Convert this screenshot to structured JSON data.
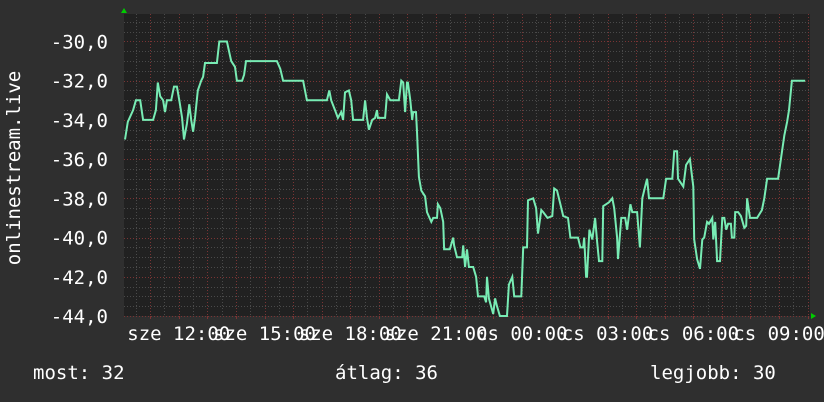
{
  "chart_data": {
    "type": "line",
    "ylabel": "onlinestream.live",
    "xlim": [
      "10:05",
      "10:05"
    ],
    "ylim": [
      -44,
      -28.6
    ],
    "yticks": [
      -30,
      -32,
      -34,
      -36,
      -38,
      -40,
      -42,
      -44
    ],
    "ytick_labels": [
      "-30,0",
      "-32,0",
      "-34,0",
      "-36,0",
      "-38,0",
      "-40,0",
      "-42,0",
      "-44,0"
    ],
    "xticks": [
      "12:00",
      "15:00",
      "18:00",
      "21:00",
      "00:00",
      "03:00",
      "06:00",
      "09:00"
    ],
    "xtick_labels": [
      "sze 12:00",
      "sze 15:00",
      "sze 18:00",
      "sze 21:00",
      "cs 00:00",
      "cs 03:00",
      "cs 06:00",
      "cs 09:00"
    ],
    "grid": true,
    "colors": {
      "line": "#78ecb4",
      "background": "#2f2f2f",
      "plot": "#212121",
      "major_grid": "#7a3434",
      "minor_grid": "#4a4a4a",
      "arrow": "#00cc00"
    },
    "series": [
      {
        "x": [
          "10:07",
          "10:13",
          "10:24",
          "10:30",
          "10:39",
          "10:45",
          "11:06",
          "11:12",
          "11:16",
          "11:21",
          "11:27",
          "11:31",
          "11:35",
          "11:44",
          "11:50",
          "11:56",
          "12:01",
          "12:07",
          "12:11",
          "12:17",
          "12:22",
          "12:26",
          "12:30",
          "12:34",
          "12:40",
          "12:47",
          "12:51",
          "12:55",
          "13:20",
          "13:25",
          "13:41",
          "13:50",
          "13:58",
          "14:02",
          "14:13",
          "14:17",
          "14:21",
          "15:26",
          "15:33",
          "15:39",
          "16:21",
          "16:29",
          "17:11",
          "17:16",
          "17:20",
          "17:28",
          "17:34",
          "17:41",
          "17:45",
          "17:49",
          "17:57",
          "18:02",
          "18:06",
          "18:10",
          "18:27",
          "18:31",
          "18:35",
          "18:39",
          "18:46",
          "18:52",
          "18:56",
          "18:58",
          "19:13",
          "19:17",
          "19:24",
          "19:42",
          "19:47",
          "19:51",
          "19:55",
          "19:59",
          "20:01",
          "20:06",
          "20:10",
          "20:12",
          "20:18",
          "20:20",
          "20:24",
          "20:29",
          "20:37",
          "20:41",
          "20:50",
          "20:54",
          "21:02",
          "21:04",
          "21:09",
          "21:15",
          "21:17",
          "21:29",
          "21:36",
          "21:38",
          "21:44",
          "21:55",
          "21:57",
          "22:01",
          "22:05",
          "22:09",
          "22:18",
          "22:24",
          "22:28",
          "22:41",
          "22:45",
          "22:47",
          "22:51",
          "23:00",
          "23:04",
          "23:08",
          "23:14",
          "23:29",
          "23:33",
          "23:40",
          "23:44",
          "23:59",
          "00:03",
          "00:11",
          "00:13",
          "00:24",
          "00:30",
          "00:34",
          "00:41",
          "00:45",
          "00:54",
          "01:04",
          "01:08",
          "01:14",
          "01:21",
          "01:27",
          "01:37",
          "01:42",
          "01:58",
          "02:03",
          "02:09",
          "02:11",
          "02:15",
          "02:17",
          "02:22",
          "02:28",
          "02:34",
          "02:38",
          "02:42",
          "02:49",
          "02:51",
          "03:03",
          "03:10",
          "03:14",
          "03:20",
          "03:22",
          "03:29",
          "03:37",
          "03:41",
          "03:48",
          "03:52",
          "04:02",
          "04:08",
          "04:13",
          "04:21",
          "04:23",
          "04:27",
          "04:57",
          "05:03",
          "05:16",
          "05:20",
          "05:26",
          "05:28",
          "05:39",
          "05:45",
          "05:53",
          "06:00",
          "06:02",
          "06:08",
          "06:14",
          "06:19",
          "06:23",
          "06:29",
          "06:33",
          "06:40",
          "06:42",
          "06:46",
          "06:50",
          "06:56",
          "07:01",
          "07:05",
          "07:09",
          "07:13",
          "07:19",
          "07:21",
          "07:26",
          "07:28",
          "07:34",
          "07:40",
          "07:47",
          "07:51",
          "07:53",
          "07:59",
          "08:14",
          "08:24",
          "08:29",
          "08:35",
          "08:58",
          "09:04",
          "09:11",
          "09:17",
          "09:21",
          "09:27",
          "09:55"
        ],
        "values": [
          -35,
          -34.1,
          -33.5,
          -33,
          -33,
          -34,
          -34,
          -33.5,
          -32.1,
          -32.8,
          -33,
          -33.6,
          -33,
          -33,
          -32.3,
          -32.3,
          -33,
          -33.9,
          -35,
          -34.2,
          -33.2,
          -34,
          -34.6,
          -33.9,
          -32.5,
          -32,
          -31.8,
          -31.1,
          -31.1,
          -30,
          -30,
          -31,
          -31.3,
          -32,
          -32,
          -31.7,
          -31,
          -31,
          -31.4,
          -32,
          -32,
          -33,
          -33,
          -32.5,
          -33,
          -33.5,
          -33.9,
          -33.6,
          -34,
          -32.6,
          -32.5,
          -33,
          -34,
          -34,
          -34,
          -33,
          -33.9,
          -34.5,
          -34,
          -33.9,
          -33.5,
          -33.9,
          -33.9,
          -32.7,
          -33,
          -33,
          -32,
          -32.1,
          -33.6,
          -32.1,
          -32.1,
          -33,
          -34,
          -33.6,
          -33.6,
          -34.6,
          -36.9,
          -37.6,
          -37.9,
          -38.7,
          -39.2,
          -39,
          -39,
          -38.3,
          -38.5,
          -39.2,
          -40.6,
          -40.6,
          -40,
          -40.4,
          -41,
          -41,
          -40.4,
          -41.5,
          -40.6,
          -41.5,
          -41.5,
          -42,
          -43,
          -43,
          -43.3,
          -42,
          -43.1,
          -43.9,
          -43.1,
          -43.5,
          -44,
          -44,
          -42.4,
          -42,
          -43,
          -43,
          -40.5,
          -40.5,
          -38.1,
          -38,
          -38.5,
          -39.8,
          -38.6,
          -38.7,
          -39,
          -38.9,
          -37.5,
          -37.6,
          -38.3,
          -38.9,
          -39,
          -40,
          -40,
          -40.5,
          -40.5,
          -40,
          -42,
          -42,
          -39.6,
          -40.1,
          -39,
          -40.2,
          -41.2,
          -41.2,
          -38.4,
          -38.2,
          -38,
          -38.5,
          -40,
          -41.1,
          -39,
          -39,
          -39.6,
          -38.3,
          -38.7,
          -38.7,
          -40.5,
          -38,
          -37.2,
          -37,
          -38,
          -38,
          -37,
          -37,
          -35.6,
          -35.6,
          -37,
          -37.4,
          -36.3,
          -36,
          -37.4,
          -40.1,
          -41.1,
          -41.6,
          -40.1,
          -40,
          -39.2,
          -39.3,
          -39,
          -40.1,
          -39.2,
          -41.2,
          -41.2,
          -39,
          -39,
          -39.6,
          -39.3,
          -39.3,
          -40,
          -40,
          -38.7,
          -38.7,
          -38.9,
          -39.5,
          -39.4,
          -38,
          -39,
          -39,
          -38.6,
          -38,
          -37,
          -37,
          -36,
          -34.8,
          -34.1,
          -33.5,
          -32,
          -32
        ]
      }
    ]
  },
  "footer": {
    "current": "most: 32",
    "average": "átlag: 36",
    "best": "legjobb: 30"
  }
}
